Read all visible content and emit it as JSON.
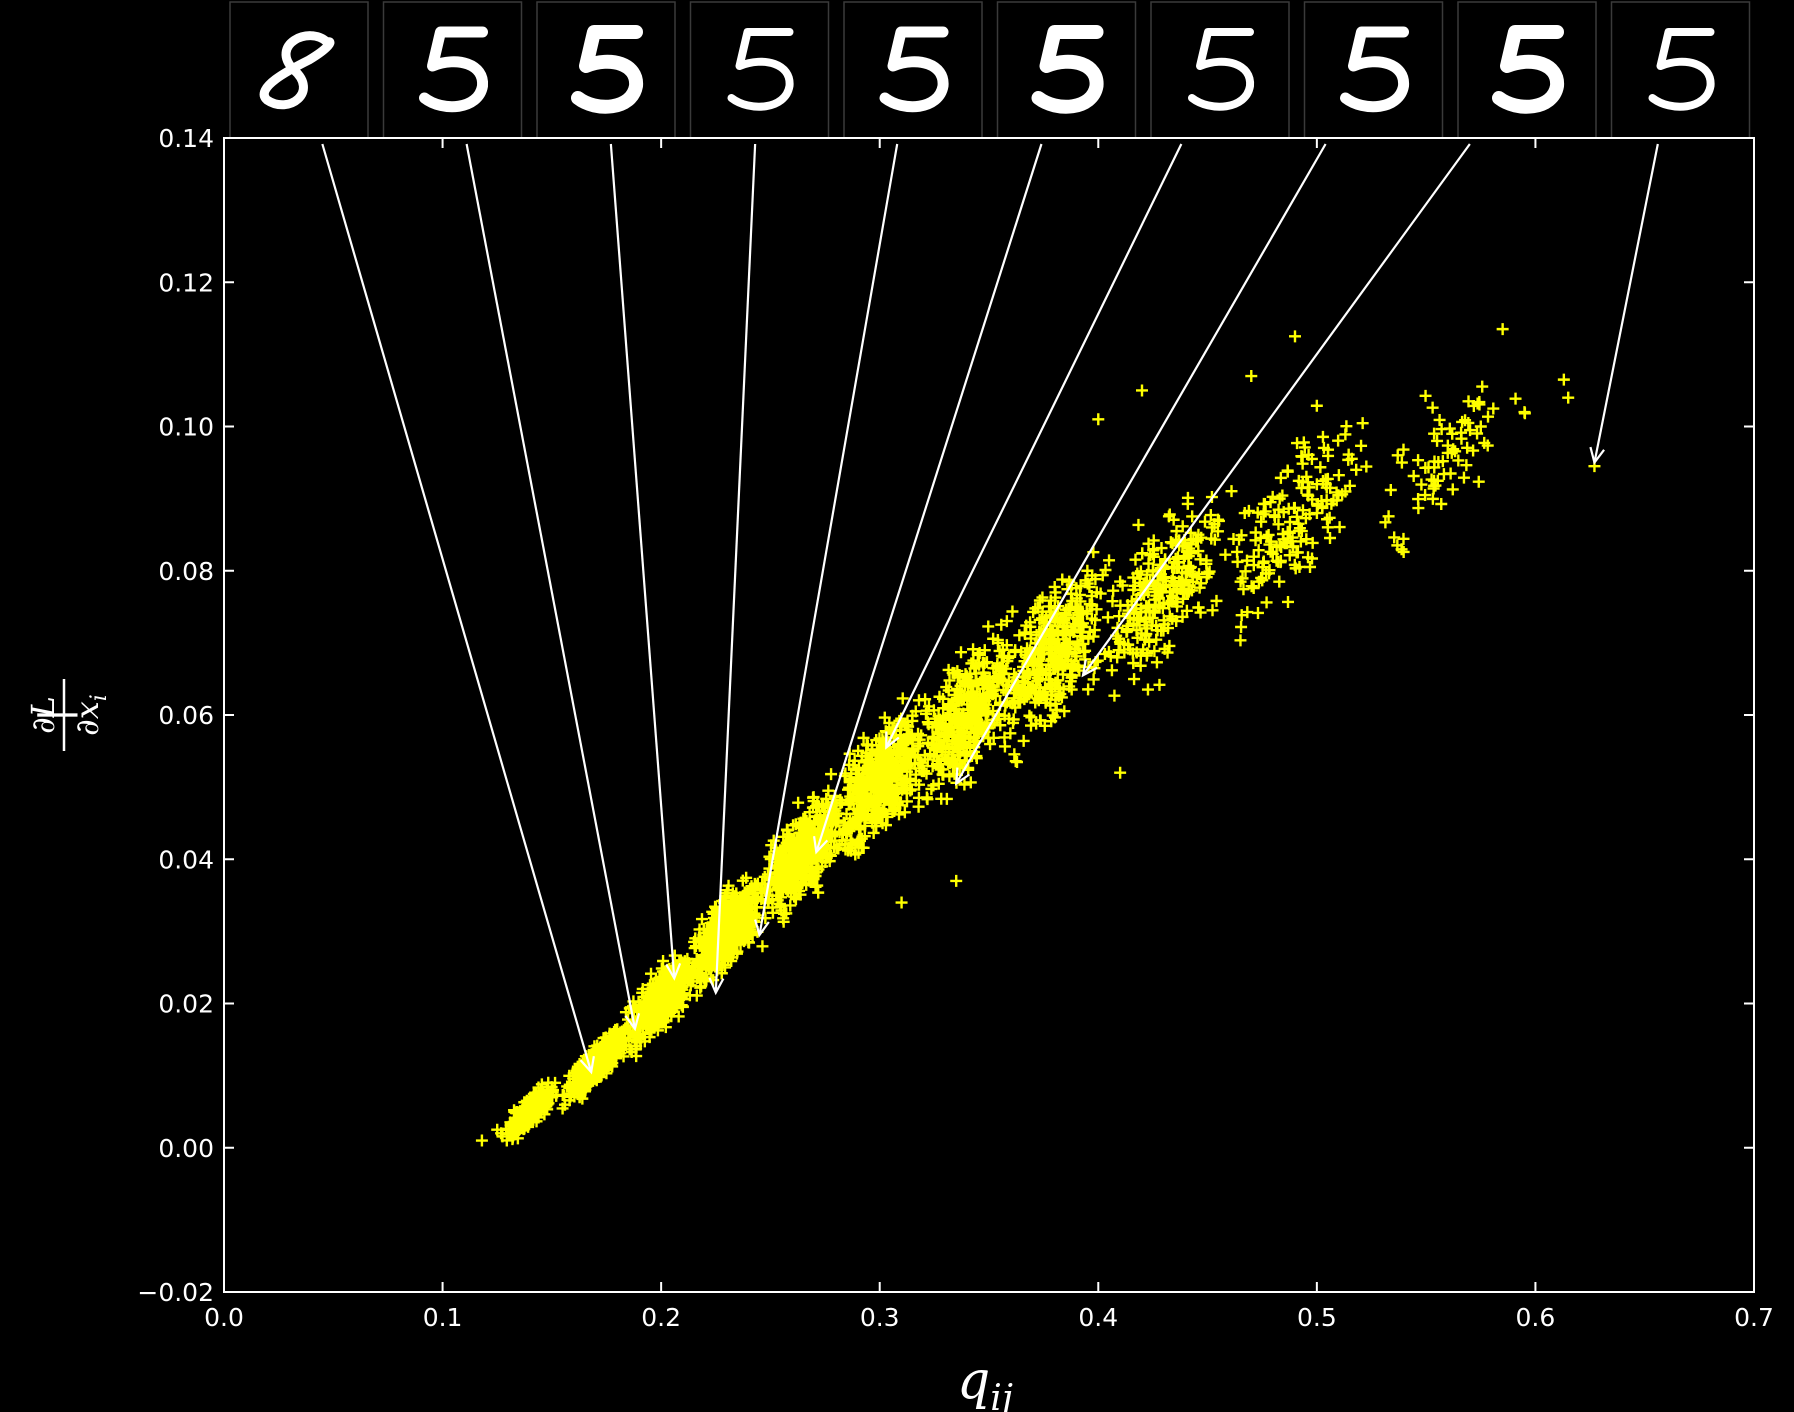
{
  "chart_data": {
    "type": "scatter",
    "title": "",
    "xlabel": "q_ij",
    "ylabel": "|∂L/∂x_i|",
    "xlim": [
      0.0,
      0.7
    ],
    "ylim": [
      -0.02,
      0.14
    ],
    "x_ticks": [
      "0.0",
      "0.1",
      "0.2",
      "0.3",
      "0.4",
      "0.5",
      "0.6",
      "0.7"
    ],
    "y_ticks": [
      "0.14",
      "0.12",
      "0.10",
      "0.08",
      "0.06",
      "0.04",
      "0.02",
      "0.00",
      "−0.02"
    ],
    "background": "#000000",
    "marker_color": "#ffff00",
    "marker": "+",
    "grid": false,
    "series": [
      {
        "values": [
          [
            0.118,
            0.001
          ],
          [
            0.125,
            0.0025
          ],
          [
            0.132,
            0.003
          ],
          [
            0.138,
            0.004
          ],
          [
            0.143,
            0.005
          ],
          [
            0.148,
            0.006
          ],
          [
            0.152,
            0.0072
          ],
          [
            0.157,
            0.0085
          ],
          [
            0.161,
            0.0095
          ],
          [
            0.166,
            0.0108
          ],
          [
            0.17,
            0.0118
          ],
          [
            0.175,
            0.013
          ],
          [
            0.18,
            0.0145
          ],
          [
            0.185,
            0.016
          ],
          [
            0.19,
            0.017
          ],
          [
            0.195,
            0.0185
          ],
          [
            0.2,
            0.0205
          ],
          [
            0.205,
            0.022
          ],
          [
            0.211,
            0.024
          ],
          [
            0.217,
            0.026
          ],
          [
            0.223,
            0.028
          ],
          [
            0.23,
            0.03
          ],
          [
            0.236,
            0.032
          ],
          [
            0.243,
            0.0345
          ],
          [
            0.25,
            0.0365
          ],
          [
            0.257,
            0.039
          ],
          [
            0.265,
            0.041
          ],
          [
            0.272,
            0.0435
          ],
          [
            0.28,
            0.046
          ],
          [
            0.288,
            0.0485
          ],
          [
            0.296,
            0.051
          ],
          [
            0.305,
            0.054
          ],
          [
            0.313,
            0.0565
          ],
          [
            0.322,
            0.059
          ],
          [
            0.332,
            0.0615
          ],
          [
            0.342,
            0.064
          ],
          [
            0.352,
            0.0665
          ],
          [
            0.362,
            0.069
          ],
          [
            0.373,
            0.0715
          ],
          [
            0.385,
            0.074
          ],
          [
            0.397,
            0.0765
          ],
          [
            0.41,
            0.0785
          ],
          [
            0.423,
            0.081
          ],
          [
            0.437,
            0.0835
          ],
          [
            0.452,
            0.086
          ],
          [
            0.467,
            0.088
          ],
          [
            0.483,
            0.09
          ],
          [
            0.5,
            0.092
          ],
          [
            0.518,
            0.094
          ],
          [
            0.537,
            0.096
          ],
          [
            0.555,
            0.098
          ],
          [
            0.575,
            0.1
          ],
          [
            0.595,
            0.102
          ],
          [
            0.615,
            0.104
          ],
          [
            0.627,
            0.0945
          ],
          [
            0.613,
            0.1065
          ],
          [
            0.585,
            0.1135
          ],
          [
            0.49,
            0.1125
          ],
          [
            0.47,
            0.107
          ],
          [
            0.42,
            0.105
          ],
          [
            0.4,
            0.101
          ],
          [
            0.395,
            0.08
          ],
          [
            0.41,
            0.052
          ],
          [
            0.335,
            0.037
          ],
          [
            0.31,
            0.034
          ]
        ]
      }
    ],
    "cloud": [
      {
        "x": 0.14,
        "y": 0.005,
        "sx": 0.01,
        "sy": 0.0018,
        "n": 260
      },
      {
        "x": 0.17,
        "y": 0.0115,
        "sx": 0.012,
        "sy": 0.0025,
        "n": 420
      },
      {
        "x": 0.2,
        "y": 0.0205,
        "sx": 0.013,
        "sy": 0.0035,
        "n": 520
      },
      {
        "x": 0.23,
        "y": 0.03,
        "sx": 0.014,
        "sy": 0.0045,
        "n": 540
      },
      {
        "x": 0.265,
        "y": 0.041,
        "sx": 0.016,
        "sy": 0.0055,
        "n": 520
      },
      {
        "x": 0.3,
        "y": 0.051,
        "sx": 0.018,
        "sy": 0.0065,
        "n": 480
      },
      {
        "x": 0.34,
        "y": 0.06,
        "sx": 0.02,
        "sy": 0.0075,
        "n": 420
      },
      {
        "x": 0.38,
        "y": 0.069,
        "sx": 0.022,
        "sy": 0.0085,
        "n": 360
      },
      {
        "x": 0.43,
        "y": 0.077,
        "sx": 0.025,
        "sy": 0.009,
        "n": 260
      },
      {
        "x": 0.49,
        "y": 0.087,
        "sx": 0.03,
        "sy": 0.0095,
        "n": 160
      },
      {
        "x": 0.56,
        "y": 0.096,
        "sx": 0.03,
        "sy": 0.0085,
        "n": 70
      }
    ],
    "annotations": [
      {
        "from_x": 0.045,
        "to": [
          0.168,
          0.0105
        ],
        "digit": "8"
      },
      {
        "from_x": 0.111,
        "to": [
          0.188,
          0.0165
        ],
        "digit": "5"
      },
      {
        "from_x": 0.177,
        "to": [
          0.206,
          0.0235
        ],
        "digit": "5"
      },
      {
        "from_x": 0.243,
        "to": [
          0.225,
          0.0215
        ],
        "digit": "5"
      },
      {
        "from_x": 0.308,
        "to": [
          0.245,
          0.0295
        ],
        "digit": "5"
      },
      {
        "from_x": 0.374,
        "to": [
          0.271,
          0.041
        ],
        "digit": "5"
      },
      {
        "from_x": 0.438,
        "to": [
          0.303,
          0.0555
        ],
        "digit": "5"
      },
      {
        "from_x": 0.504,
        "to": [
          0.335,
          0.0505
        ],
        "digit": "5"
      },
      {
        "from_x": 0.57,
        "to": [
          0.393,
          0.0655
        ],
        "digit": "5"
      },
      {
        "from_x": 0.656,
        "to": [
          0.627,
          0.095
        ],
        "digit": "5"
      }
    ]
  }
}
